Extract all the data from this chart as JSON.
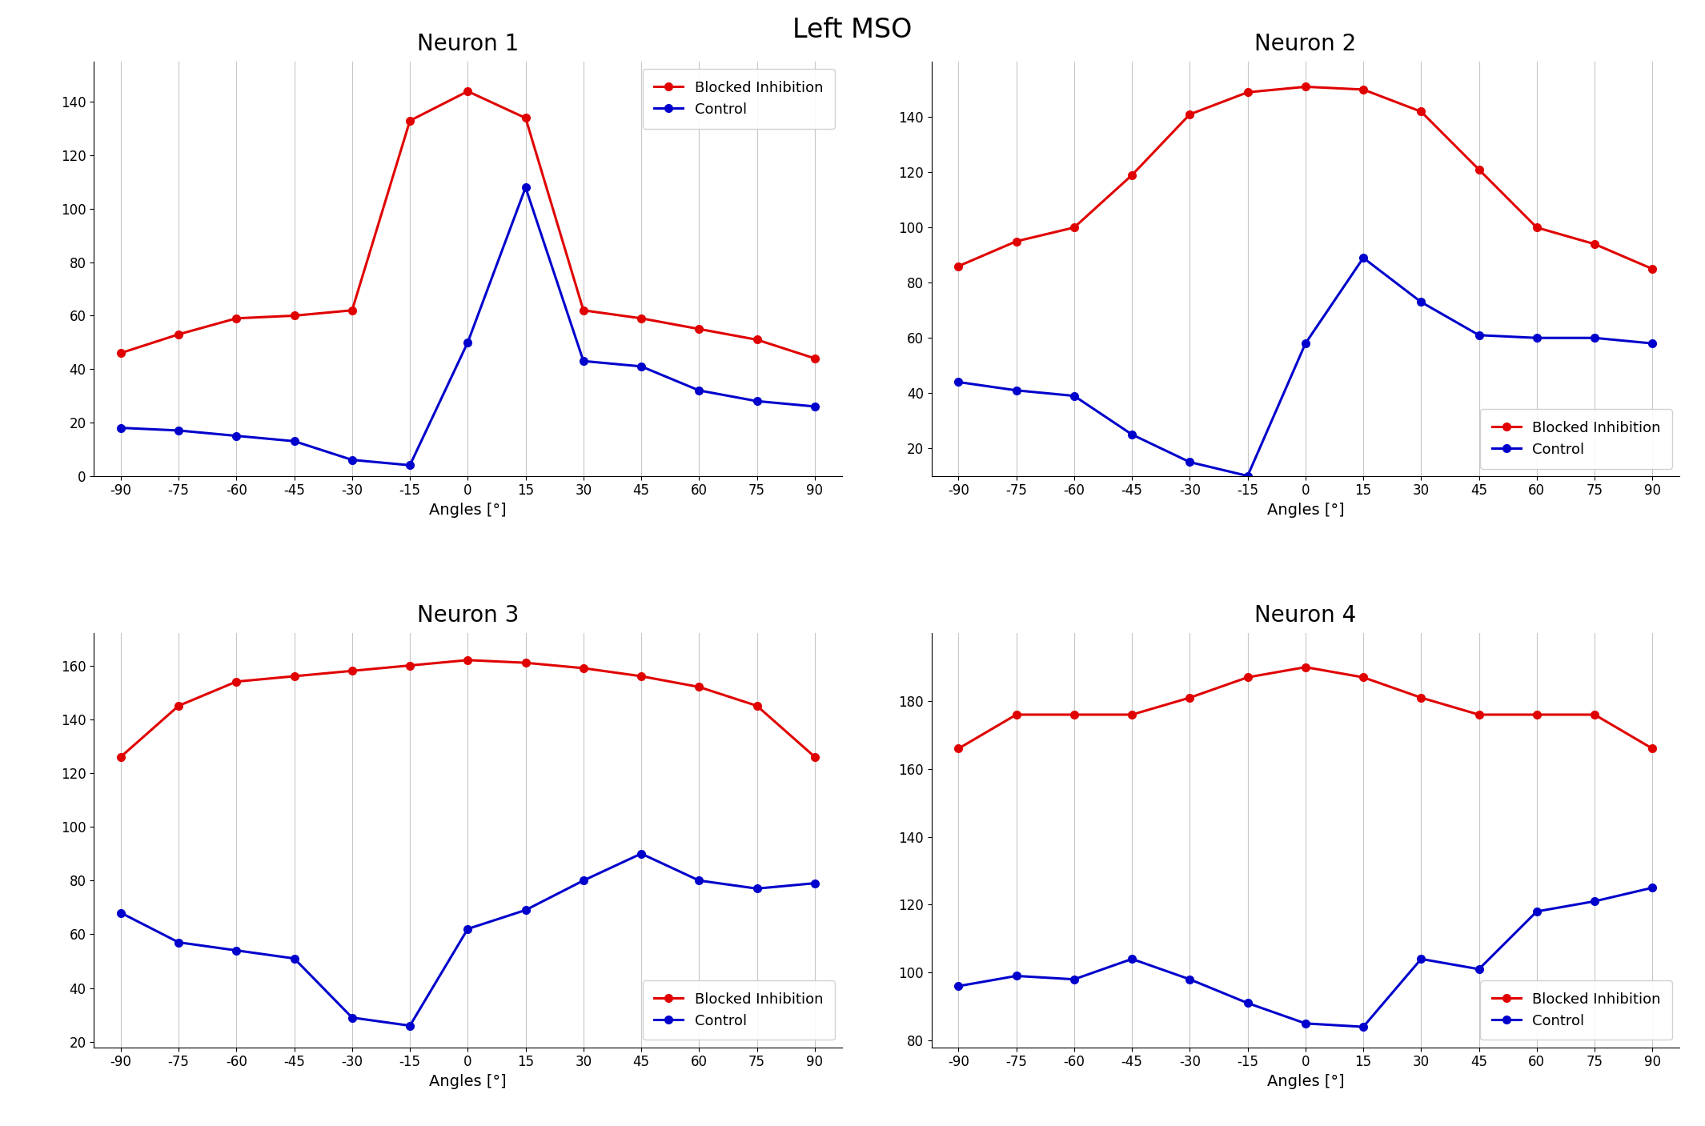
{
  "angles": [
    -90,
    -75,
    -60,
    -45,
    -30,
    -15,
    0,
    15,
    30,
    45,
    60,
    75,
    90
  ],
  "neuron1": {
    "title": "Neuron 1",
    "red": [
      46,
      53,
      59,
      60,
      62,
      133,
      144,
      134,
      62,
      59,
      55,
      51,
      44
    ],
    "blue": [
      18,
      17,
      15,
      13,
      6,
      4,
      50,
      108,
      43,
      41,
      32,
      28,
      26
    ],
    "ylim": [
      0,
      155
    ],
    "yticks": [
      0,
      20,
      40,
      60,
      80,
      100,
      120,
      140
    ]
  },
  "neuron2": {
    "title": "Neuron 2",
    "red": [
      86,
      95,
      100,
      119,
      141,
      149,
      151,
      150,
      142,
      121,
      100,
      94,
      85
    ],
    "blue": [
      44,
      41,
      39,
      25,
      15,
      10,
      58,
      89,
      73,
      61,
      60,
      60,
      58
    ],
    "ylim": [
      10,
      160
    ],
    "yticks": [
      20,
      40,
      60,
      80,
      100,
      120,
      140
    ]
  },
  "neuron3": {
    "title": "Neuron 3",
    "red": [
      126,
      145,
      154,
      156,
      158,
      160,
      162,
      161,
      159,
      156,
      152,
      145,
      126
    ],
    "blue": [
      68,
      57,
      54,
      51,
      29,
      26,
      62,
      69,
      80,
      90,
      80,
      77,
      79
    ],
    "ylim": [
      18,
      172
    ],
    "yticks": [
      20,
      40,
      60,
      80,
      100,
      120,
      140,
      160
    ]
  },
  "neuron4": {
    "title": "Neuron 4",
    "red": [
      166,
      176,
      176,
      176,
      181,
      187,
      190,
      187,
      181,
      176,
      176,
      176,
      166
    ],
    "blue": [
      96,
      99,
      98,
      104,
      98,
      91,
      85,
      84,
      104,
      101,
      118,
      121,
      125
    ],
    "ylim": [
      78,
      200
    ],
    "yticks": [
      80,
      100,
      120,
      140,
      160,
      180
    ]
  },
  "suptitle": "Left MSO",
  "xlabel": "Angles [°]",
  "legend_red": "Blocked Inhibition",
  "legend_blue": "Control",
  "red_color": "#e00000",
  "blue_color": "#0000cc",
  "background": "white",
  "grid_color": "#b0b0b0"
}
